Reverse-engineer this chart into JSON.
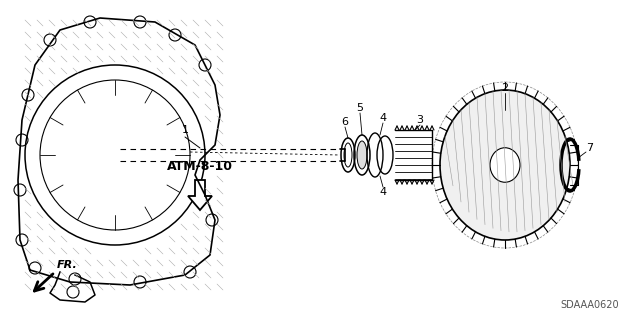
{
  "bg_color": "#ffffff",
  "line_color": "#000000",
  "atm_label": "ATM-8-10",
  "fr_label": "FR.",
  "diagram_code": "SDAAA0620",
  "figsize": [
    6.4,
    3.19
  ],
  "dpi": 100
}
